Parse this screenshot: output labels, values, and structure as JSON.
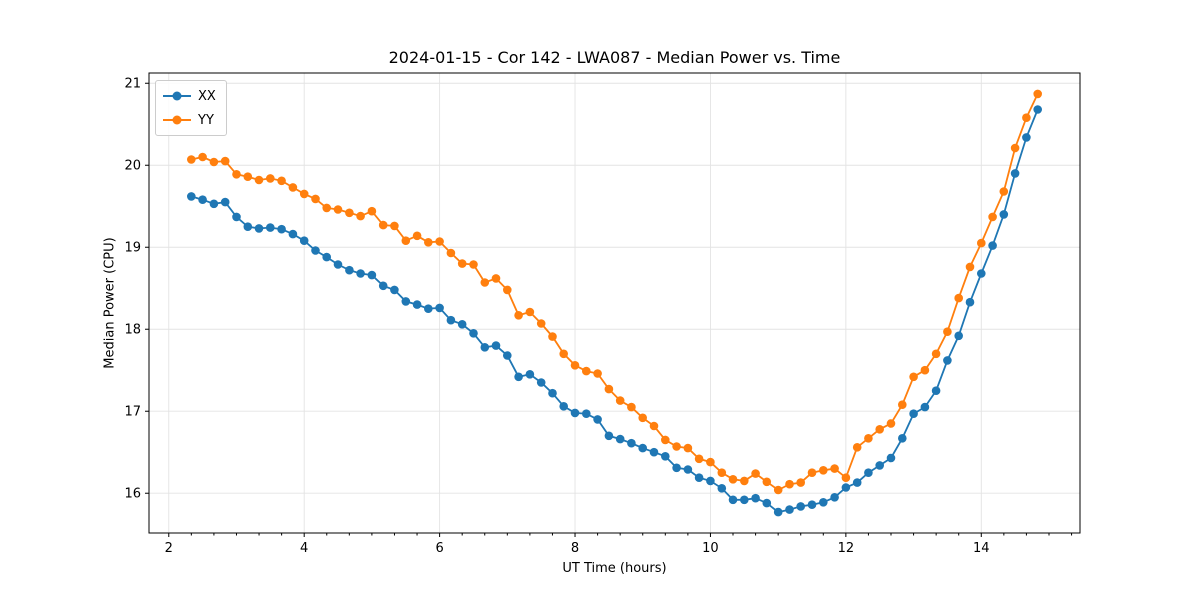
{
  "figure": {
    "background": "#ffffff"
  },
  "chart_data": {
    "type": "line",
    "title": "2024-01-15 - Cor 142 - LWA087 - Median Power vs. Time",
    "xlabel": "UT Time (hours)",
    "ylabel": "Median Power (CPU)",
    "xlim": [
      1.708,
      15.458
    ],
    "ylim": [
      15.515,
      21.125
    ],
    "x_ticks": [
      2,
      4,
      6,
      8,
      10,
      12,
      14
    ],
    "x_minor_tick_step": 0.3333,
    "y_ticks": [
      16,
      17,
      18,
      19,
      20,
      21
    ],
    "grid": true,
    "grid_color": "#e3e3e3",
    "axis_color": "#000000",
    "legend_position": "upper-left",
    "marker": "circle",
    "x": [
      2.333,
      2.5,
      2.667,
      2.833,
      3.0,
      3.167,
      3.333,
      3.5,
      3.667,
      3.833,
      4.0,
      4.167,
      4.333,
      4.5,
      4.667,
      4.833,
      5.0,
      5.167,
      5.333,
      5.5,
      5.667,
      5.833,
      6.0,
      6.167,
      6.333,
      6.5,
      6.667,
      6.833,
      7.0,
      7.167,
      7.333,
      7.5,
      7.667,
      7.833,
      8.0,
      8.167,
      8.333,
      8.5,
      8.667,
      8.833,
      9.0,
      9.167,
      9.333,
      9.5,
      9.667,
      9.833,
      10.0,
      10.167,
      10.333,
      10.5,
      10.667,
      10.833,
      11.0,
      11.167,
      11.333,
      11.5,
      11.667,
      11.833,
      12.0,
      12.167,
      12.333,
      12.5,
      12.667,
      12.833,
      13.0,
      13.167,
      13.333,
      13.5,
      13.667,
      13.833,
      14.0,
      14.167,
      14.333,
      14.5,
      14.667,
      14.833
    ],
    "series": [
      {
        "name": "XX",
        "color": "#1f77b4",
        "values": [
          19.62,
          19.58,
          19.53,
          19.55,
          19.37,
          19.25,
          19.23,
          19.24,
          19.22,
          19.16,
          19.08,
          18.96,
          18.88,
          18.79,
          18.72,
          18.68,
          18.66,
          18.53,
          18.48,
          18.34,
          18.3,
          18.25,
          18.26,
          18.11,
          18.06,
          17.95,
          17.78,
          17.8,
          17.68,
          17.42,
          17.45,
          17.35,
          17.22,
          17.06,
          16.98,
          16.97,
          16.9,
          16.7,
          16.66,
          16.61,
          16.55,
          16.5,
          16.45,
          16.31,
          16.29,
          16.19,
          16.15,
          16.06,
          15.92,
          15.92,
          15.94,
          15.88,
          15.77,
          15.8,
          15.84,
          15.86,
          15.89,
          15.95,
          16.07,
          16.13,
          16.25,
          16.34,
          16.43,
          16.67,
          16.97,
          17.05,
          17.25,
          17.62,
          17.92,
          18.33,
          18.68,
          19.02,
          19.4,
          19.9,
          20.34,
          20.68
        ]
      },
      {
        "name": "YY",
        "color": "#ff7f0e",
        "values": [
          20.07,
          20.1,
          20.04,
          20.05,
          19.89,
          19.86,
          19.82,
          19.84,
          19.81,
          19.73,
          19.65,
          19.59,
          19.48,
          19.46,
          19.42,
          19.38,
          19.44,
          19.27,
          19.26,
          19.08,
          19.14,
          19.06,
          19.07,
          18.93,
          18.8,
          18.79,
          18.57,
          18.62,
          18.48,
          18.17,
          18.21,
          18.07,
          17.91,
          17.7,
          17.56,
          17.49,
          17.46,
          17.27,
          17.13,
          17.05,
          16.92,
          16.82,
          16.65,
          16.57,
          16.55,
          16.42,
          16.38,
          16.25,
          16.17,
          16.15,
          16.24,
          16.14,
          16.04,
          16.11,
          16.13,
          16.25,
          16.28,
          16.3,
          16.19,
          16.56,
          16.67,
          16.78,
          16.85,
          17.08,
          17.42,
          17.5,
          17.7,
          17.97,
          18.38,
          18.76,
          19.05,
          19.37,
          19.68,
          20.21,
          20.58,
          20.87
        ]
      }
    ]
  }
}
